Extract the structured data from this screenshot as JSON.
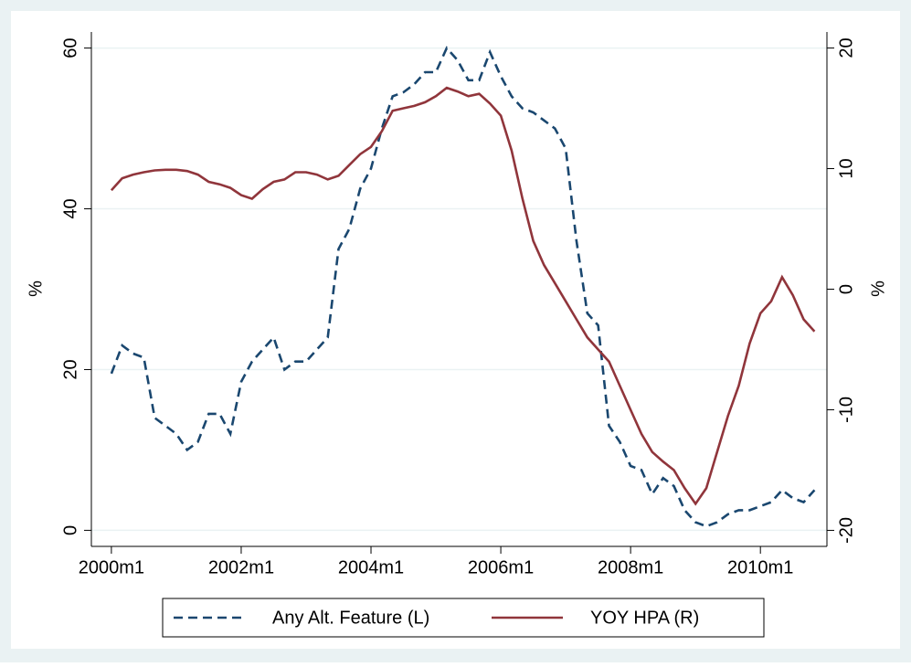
{
  "chart_data": {
    "type": "line",
    "x": [
      480,
      482,
      484,
      486,
      488,
      490,
      492,
      494,
      496,
      498,
      500,
      502,
      504,
      506,
      508,
      510,
      512,
      514,
      516,
      518,
      520,
      522,
      524,
      526,
      528,
      530,
      532,
      534,
      536,
      538,
      540,
      542,
      544,
      546,
      548,
      550,
      552,
      554,
      556,
      558,
      560,
      562,
      564,
      566,
      568,
      570,
      572,
      574,
      576,
      578,
      580,
      582,
      584,
      586,
      588,
      590,
      592,
      594,
      596,
      598,
      600,
      602,
      604,
      606,
      608,
      610
    ],
    "xlim": [
      476.3,
      612.3
    ],
    "xticks": [
      {
        "value": 480,
        "label": "2000m1"
      },
      {
        "value": 504,
        "label": "2002m1"
      },
      {
        "value": 528,
        "label": "2004m1"
      },
      {
        "value": 552,
        "label": "2006m1"
      },
      {
        "value": 576,
        "label": "2008m1"
      },
      {
        "value": 600,
        "label": "2010m1"
      }
    ],
    "ylabel": "%",
    "y2label": "%",
    "ylim": [
      -2,
      62
    ],
    "yticks": [
      0,
      20,
      40,
      60
    ],
    "y2lim": [
      -21.33,
      21.33
    ],
    "y2ticks": [
      -20,
      -10,
      0,
      10,
      20
    ],
    "grid": true,
    "series": [
      {
        "name": "Any Alt. Feature (L)",
        "color": "#1a476f",
        "dash": true,
        "values": [
          19.5,
          23,
          22,
          21.5,
          14,
          13,
          12,
          10,
          11,
          14.5,
          14.5,
          12,
          18.5,
          21,
          22.5,
          24,
          20,
          21,
          21,
          22.5,
          24,
          35,
          37.5,
          42.5,
          45,
          50,
          54,
          54.5,
          55.5,
          57,
          57,
          60,
          58.5,
          56,
          56,
          59.5,
          56.5,
          54,
          52.5,
          52,
          51,
          50,
          47.5,
          36,
          27,
          25.5,
          13,
          11,
          8,
          7.5,
          4.5,
          6.5,
          5.5,
          2.5,
          1,
          0.5,
          1,
          2,
          2.5,
          2.5,
          3,
          3.5,
          5,
          4,
          3.5,
          5
        ]
      },
      {
        "name": "YOY HPA (R)",
        "color": "#90353b",
        "axis": "y2",
        "values": [
          8.2,
          9.2,
          9.5,
          9.7,
          9.85,
          9.9,
          9.9,
          9.8,
          9.5,
          8.9,
          8.7,
          8.4,
          7.8,
          7.5,
          8.3,
          8.9,
          9.1,
          9.7,
          9.7,
          9.5,
          9.1,
          9.4,
          10.3,
          11.2,
          11.8,
          13.1,
          14.8,
          15,
          15.2,
          15.5,
          16,
          16.7,
          16.4,
          16,
          16.2,
          15.4,
          14.4,
          11.5,
          7.5,
          4,
          2,
          0.5,
          -1,
          -2.5,
          -4,
          -5,
          -6,
          -8,
          -10,
          -12,
          -13.5,
          -14.3,
          -15,
          -16.5,
          -17.8,
          -16.5,
          -13.5,
          -10.5,
          -8,
          -4.5,
          -2,
          -1,
          1,
          -0.5,
          -2.5,
          -3.5
        ]
      }
    ]
  }
}
